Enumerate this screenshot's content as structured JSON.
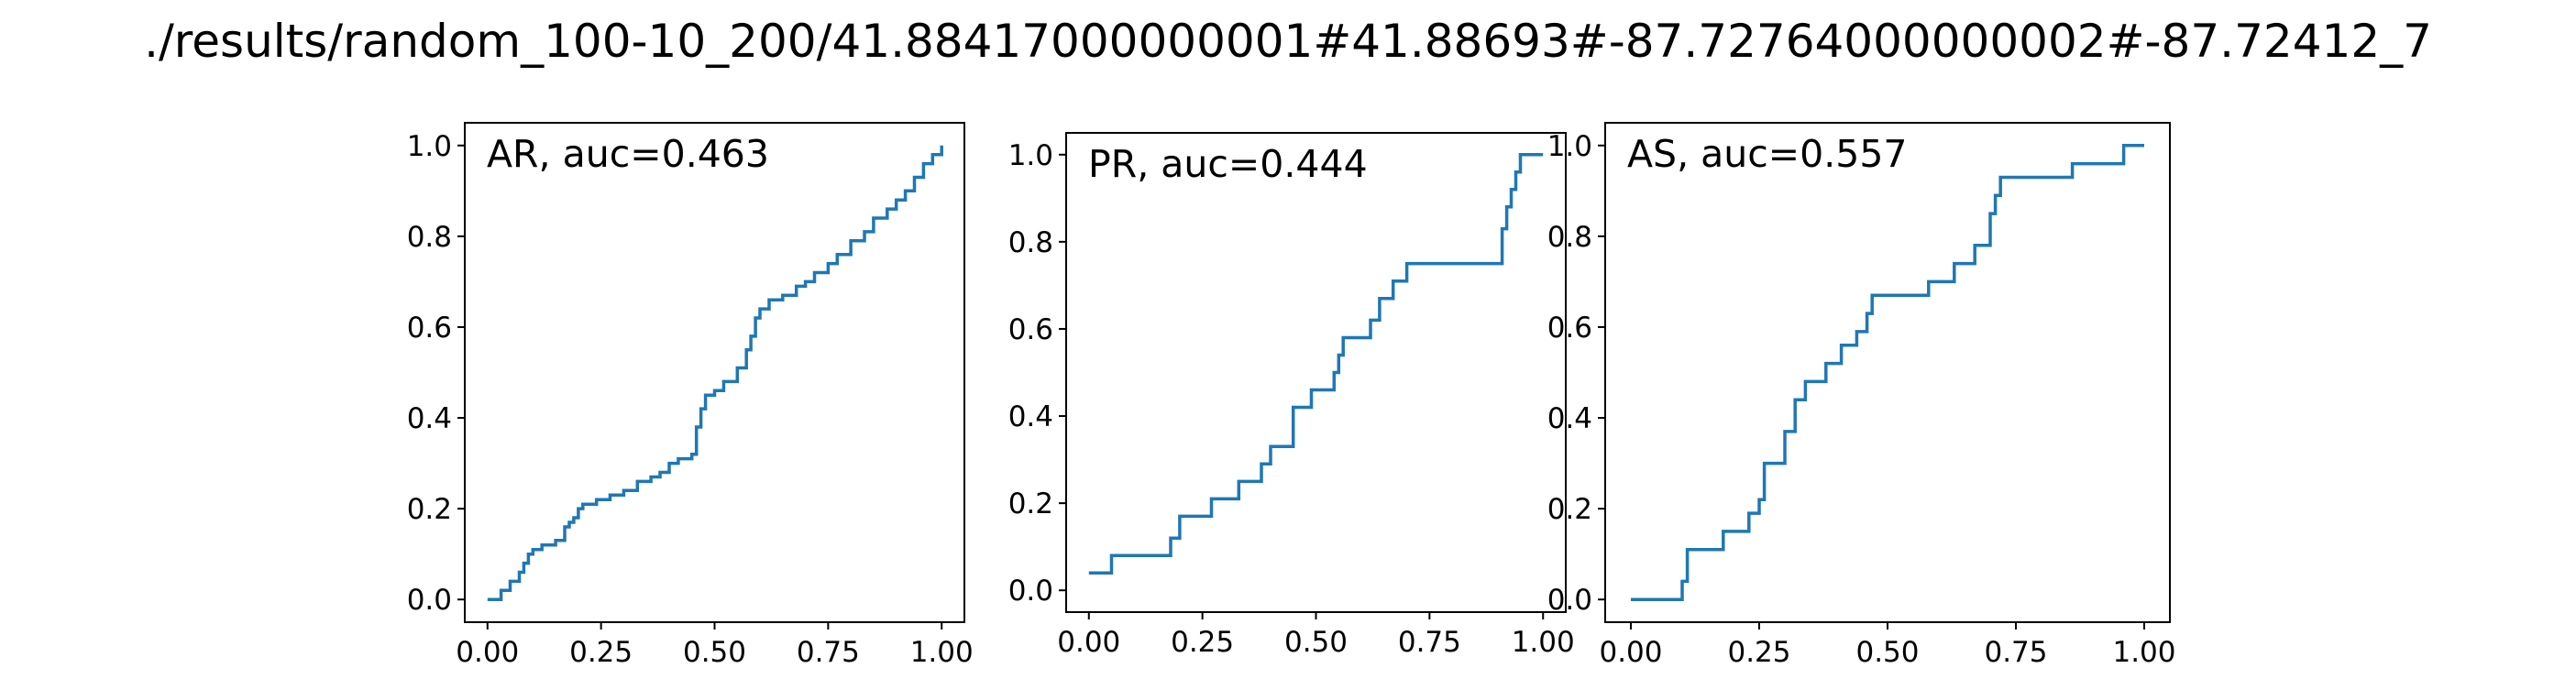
{
  "figure_title": "./results/random_100-10_200/41.88417000000001#41.88693#-87.72764000000002#-87.72412_7",
  "colors": {
    "line": "#1f77b4",
    "axes": "#000000",
    "background": "#ffffff"
  },
  "chart_data": [
    {
      "type": "line",
      "step": true,
      "title": "",
      "annotation": "AR, auc=0.463",
      "xlabel": "",
      "ylabel": "",
      "xlim": [
        -0.05,
        1.05
      ],
      "ylim": [
        -0.05,
        1.05
      ],
      "grid": false,
      "xticks": [
        0.0,
        0.25,
        0.5,
        0.75,
        1.0
      ],
      "xtick_labels": [
        "0.00",
        "0.25",
        "0.50",
        "0.75",
        "1.00"
      ],
      "yticks": [
        0.0,
        0.2,
        0.4,
        0.6,
        0.8,
        1.0
      ],
      "ytick_labels": [
        "0.0",
        "0.2",
        "0.4",
        "0.6",
        "0.8",
        "1.0"
      ],
      "series": [
        {
          "x": [
            0.0,
            0.03,
            0.05,
            0.07,
            0.08,
            0.09,
            0.1,
            0.12,
            0.15,
            0.17,
            0.18,
            0.19,
            0.2,
            0.21,
            0.22,
            0.24,
            0.27,
            0.3,
            0.33,
            0.36,
            0.38,
            0.4,
            0.42,
            0.45,
            0.46,
            0.47,
            0.48,
            0.5,
            0.52,
            0.55,
            0.57,
            0.58,
            0.59,
            0.6,
            0.62,
            0.65,
            0.68,
            0.7,
            0.72,
            0.75,
            0.77,
            0.8,
            0.83,
            0.85,
            0.88,
            0.9,
            0.92,
            0.94,
            0.96,
            0.98,
            1.0
          ],
          "y": [
            0.0,
            0.02,
            0.04,
            0.06,
            0.08,
            0.1,
            0.11,
            0.12,
            0.13,
            0.16,
            0.17,
            0.18,
            0.2,
            0.21,
            0.21,
            0.22,
            0.23,
            0.24,
            0.26,
            0.27,
            0.28,
            0.3,
            0.31,
            0.32,
            0.38,
            0.42,
            0.45,
            0.46,
            0.48,
            0.51,
            0.55,
            0.58,
            0.62,
            0.64,
            0.66,
            0.67,
            0.69,
            0.7,
            0.72,
            0.74,
            0.76,
            0.79,
            0.81,
            0.84,
            0.86,
            0.88,
            0.9,
            0.93,
            0.96,
            0.98,
            1.0
          ]
        }
      ]
    },
    {
      "type": "line",
      "step": true,
      "title": "",
      "annotation": "PR, auc=0.444",
      "xlabel": "",
      "ylabel": "",
      "xlim": [
        -0.05,
        1.05
      ],
      "ylim": [
        -0.05,
        1.05
      ],
      "grid": false,
      "xticks": [
        0.0,
        0.25,
        0.5,
        0.75,
        1.0
      ],
      "xtick_labels": [
        "0.00",
        "0.25",
        "0.50",
        "0.75",
        "1.00"
      ],
      "yticks": [
        0.0,
        0.2,
        0.4,
        0.6,
        0.8,
        1.0
      ],
      "ytick_labels": [
        "0.0",
        "0.2",
        "0.4",
        "0.6",
        "0.8",
        "1.0"
      ],
      "series": [
        {
          "x": [
            0.0,
            0.05,
            0.18,
            0.2,
            0.27,
            0.33,
            0.38,
            0.4,
            0.45,
            0.49,
            0.54,
            0.55,
            0.56,
            0.62,
            0.64,
            0.67,
            0.7,
            0.75,
            0.8,
            0.91,
            0.92,
            0.93,
            0.94,
            0.95,
            0.96,
            1.0
          ],
          "y": [
            0.04,
            0.08,
            0.12,
            0.17,
            0.21,
            0.25,
            0.29,
            0.33,
            0.42,
            0.46,
            0.5,
            0.54,
            0.58,
            0.62,
            0.67,
            0.71,
            0.75,
            0.75,
            0.75,
            0.83,
            0.88,
            0.92,
            0.96,
            1.0,
            1.0,
            1.0
          ]
        }
      ]
    },
    {
      "type": "line",
      "step": true,
      "title": "",
      "annotation": "AS, auc=0.557",
      "xlabel": "",
      "ylabel": "",
      "xlim": [
        -0.05,
        1.05
      ],
      "ylim": [
        -0.05,
        1.05
      ],
      "grid": false,
      "xticks": [
        0.0,
        0.25,
        0.5,
        0.75,
        1.0
      ],
      "xtick_labels": [
        "0.00",
        "0.25",
        "0.50",
        "0.75",
        "1.00"
      ],
      "yticks": [
        0.0,
        0.2,
        0.4,
        0.6,
        0.8,
        1.0
      ],
      "ytick_labels": [
        "0.0",
        "0.2",
        "0.4",
        "0.6",
        "0.8",
        "1.0"
      ],
      "series": [
        {
          "x": [
            0.0,
            0.1,
            0.11,
            0.12,
            0.18,
            0.23,
            0.25,
            0.26,
            0.3,
            0.32,
            0.34,
            0.38,
            0.41,
            0.44,
            0.46,
            0.47,
            0.58,
            0.63,
            0.67,
            0.7,
            0.71,
            0.72,
            0.86,
            0.96,
            1.0
          ],
          "y": [
            0.0,
            0.04,
            0.11,
            0.11,
            0.15,
            0.19,
            0.22,
            0.3,
            0.37,
            0.44,
            0.48,
            0.52,
            0.56,
            0.59,
            0.63,
            0.67,
            0.7,
            0.74,
            0.78,
            0.85,
            0.89,
            0.93,
            0.96,
            1.0,
            1.0
          ]
        }
      ]
    }
  ]
}
